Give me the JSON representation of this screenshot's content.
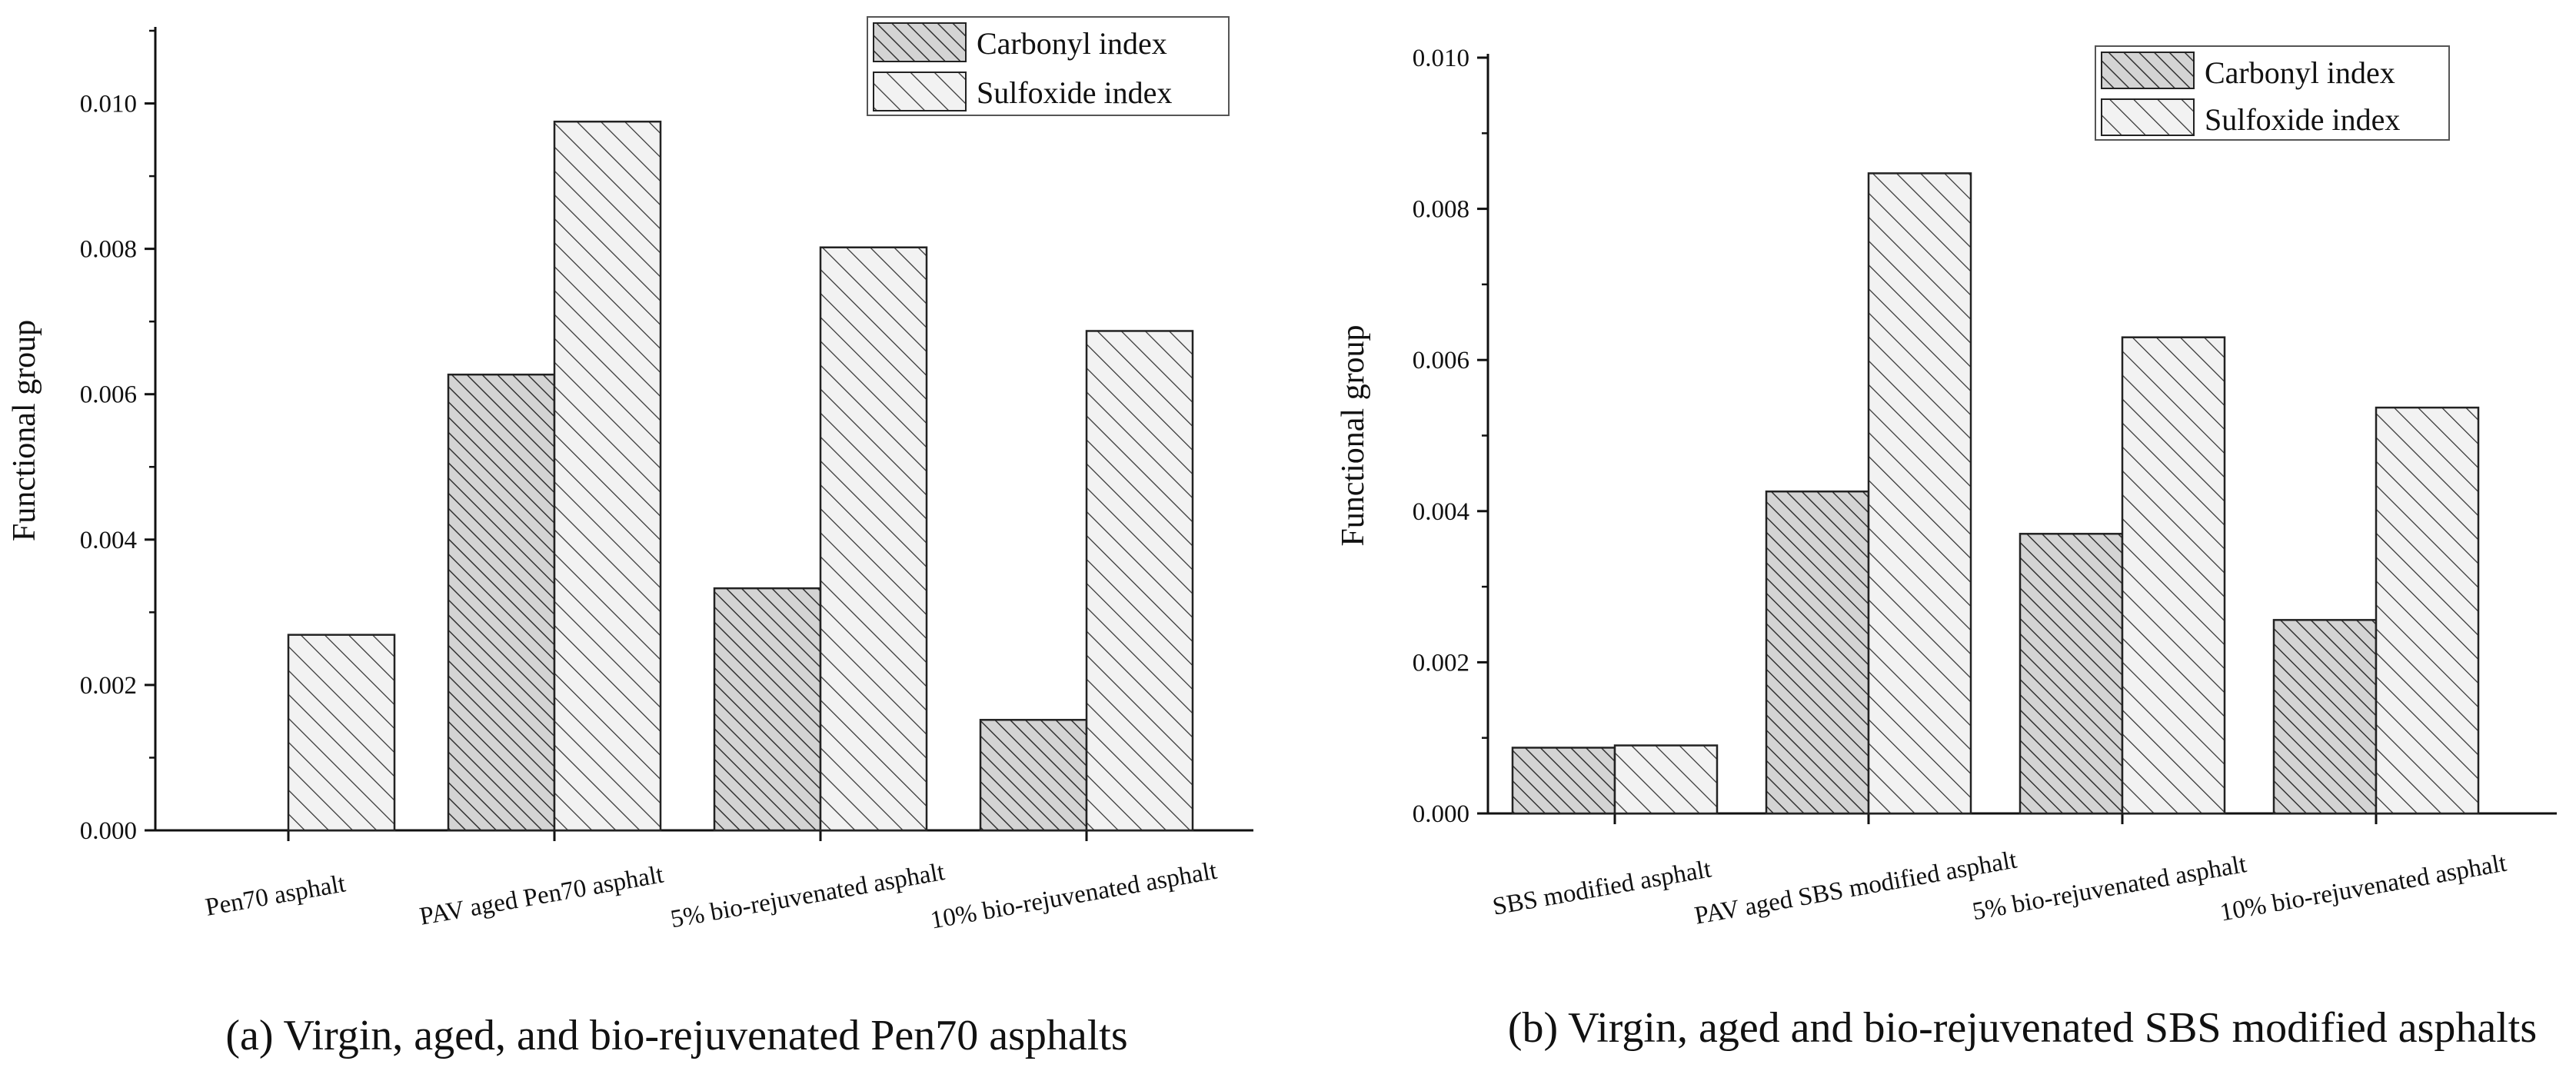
{
  "chart_data": [
    {
      "type": "bar",
      "panel": "a",
      "caption": "(a) Virgin, aged, and bio-rejuvenated Pen70 asphalts",
      "title": "",
      "xlabel": "",
      "ylabel": "Functional group",
      "ylim": [
        0,
        0.011
      ],
      "yticks": [
        "0.000",
        "0.002",
        "0.004",
        "0.006",
        "0.008",
        "0.010"
      ],
      "yticks_values": [
        0,
        0.002,
        0.004,
        0.006,
        0.008,
        0.01
      ],
      "categories": [
        "Pen70 asphalt",
        "PAV aged Pen70 asphalt",
        "5% bio-rejuvenated asphalt",
        "10% bio-rejuvenated asphalt"
      ],
      "series": [
        {
          "name": "Carbonyl index",
          "values": [
            0.0,
            0.00627,
            0.00333,
            0.00152
          ]
        },
        {
          "name": "Sulfoxide index",
          "values": [
            0.00269,
            0.00975,
            0.00802,
            0.00687
          ]
        }
      ],
      "legend_position": "top-right",
      "grid": false
    },
    {
      "type": "bar",
      "panel": "b",
      "caption": "(b) Virgin, aged and bio-rejuvenated SBS modified asphalts",
      "title": "",
      "xlabel": "",
      "ylabel": "Functional group",
      "ylim": [
        0,
        0.01
      ],
      "yticks": [
        "0.000",
        "0.002",
        "0.004",
        "0.006",
        "0.008",
        "0.010"
      ],
      "yticks_values": [
        0,
        0.002,
        0.004,
        0.006,
        0.008,
        0.01
      ],
      "categories": [
        "SBS modified asphalt",
        "PAV aged SBS modified  asphalt",
        "5% bio-rejuvenated asphalt",
        "10% bio-rejuvenated asphalt"
      ],
      "series": [
        {
          "name": "Carbonyl index",
          "values": [
            0.00087,
            0.00426,
            0.0037,
            0.00256
          ]
        },
        {
          "name": "Sulfoxide index",
          "values": [
            0.0009,
            0.00847,
            0.0063,
            0.00537
          ]
        }
      ],
      "legend_position": "top-right",
      "grid": false
    }
  ]
}
